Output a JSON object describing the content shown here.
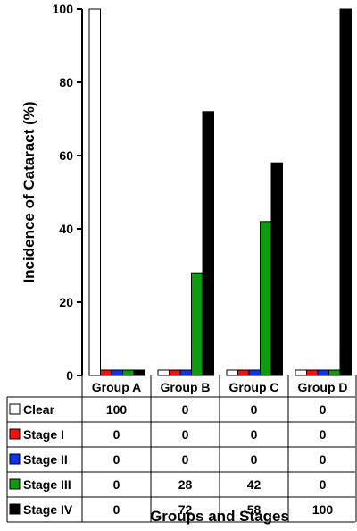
{
  "chart_data": {
    "type": "bar",
    "ylabel": "Incidence of Cataract (%)",
    "xlabel": "Groups and Stages",
    "ylim": [
      0,
      100
    ],
    "yticks": [
      0,
      20,
      40,
      60,
      80,
      100
    ],
    "categories": [
      "Group A",
      "Group B",
      "Group C",
      "Group D"
    ],
    "series": [
      {
        "name": "Clear",
        "color": "#ffffff",
        "values": [
          100,
          0,
          0,
          0
        ]
      },
      {
        "name": "Stage I",
        "color": "#ee1111",
        "values": [
          0,
          0,
          0,
          0
        ]
      },
      {
        "name": "Stage II",
        "color": "#1133ee",
        "values": [
          0,
          0,
          0,
          0
        ]
      },
      {
        "name": "Stage III",
        "color": "#119911",
        "values": [
          0,
          28,
          42,
          0
        ]
      },
      {
        "name": "Stage IV",
        "color": "#000000",
        "values": [
          0,
          72,
          58,
          100
        ]
      }
    ],
    "table": {
      "rows": [
        [
          "100",
          "0",
          "0",
          "0"
        ],
        [
          "0",
          "0",
          "0",
          "0"
        ],
        [
          "0",
          "0",
          "0",
          "0"
        ],
        [
          "0",
          "28",
          "42",
          "0"
        ],
        [
          "0",
          "72",
          "58",
          "100"
        ]
      ]
    },
    "grid": false,
    "legend": "table"
  }
}
